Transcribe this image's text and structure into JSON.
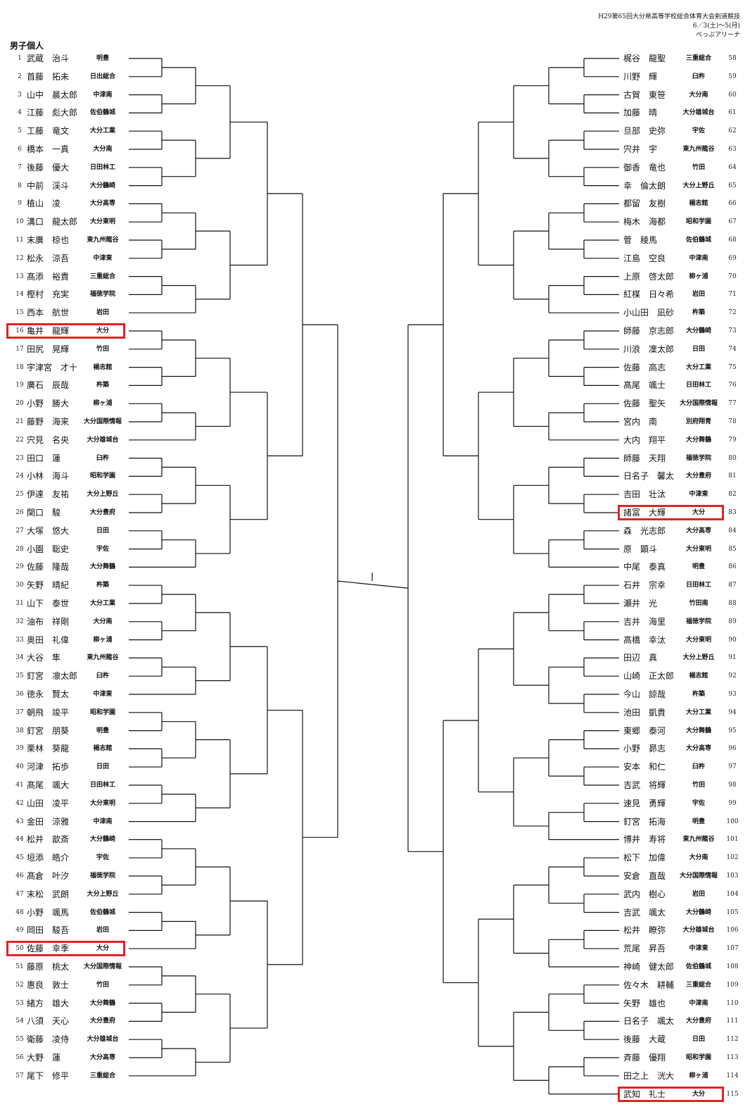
{
  "header": {
    "line1": "H29第65回大分県高等学校総合体育大会剣道競技",
    "line2": "6／3(土)～5(月)",
    "line3": "べっぷアリーナ"
  },
  "title": "男子個人",
  "left_entries": [
    {
      "no": "1",
      "name": "武蔵　治斗",
      "school": "明豊"
    },
    {
      "no": "2",
      "name": "首藤　拓未",
      "school": "日出総合"
    },
    {
      "no": "3",
      "name": "山中　晨太郎",
      "school": "中津南"
    },
    {
      "no": "4",
      "name": "江藤　彪大郎",
      "school": "佐伯鶴城"
    },
    {
      "no": "5",
      "name": "工藤　竜文",
      "school": "大分工業"
    },
    {
      "no": "6",
      "name": "橋本　一真",
      "school": "大分南"
    },
    {
      "no": "7",
      "name": "後藤　優大",
      "school": "日田林工"
    },
    {
      "no": "8",
      "name": "中前　渓斗",
      "school": "大分鶴崎"
    },
    {
      "no": "9",
      "name": "植山　凌",
      "school": "大分高専"
    },
    {
      "no": "10",
      "name": "溝口　龍太郎",
      "school": "大分東明"
    },
    {
      "no": "11",
      "name": "末廣　椋也",
      "school": "東九州龍谷"
    },
    {
      "no": "12",
      "name": "松永　涼吾",
      "school": "中津東"
    },
    {
      "no": "13",
      "name": "髙添　裕貴",
      "school": "三重総合"
    },
    {
      "no": "14",
      "name": "樫村　充実",
      "school": "福徳学院"
    },
    {
      "no": "15",
      "name": "西本　航世",
      "school": "岩田"
    },
    {
      "no": "16",
      "name": "亀井　龍輝",
      "school": "大分"
    },
    {
      "no": "17",
      "name": "田尻　晃輝",
      "school": "竹田"
    },
    {
      "no": "18",
      "name": "宇津宮　才十",
      "school": "楊志館"
    },
    {
      "no": "19",
      "name": "廣石　辰哉",
      "school": "杵築"
    },
    {
      "no": "20",
      "name": "小野　勝大",
      "school": "柳ヶ浦"
    },
    {
      "no": "21",
      "name": "藤野　海来",
      "school": "大分国際情報"
    },
    {
      "no": "22",
      "name": "宍見　名央",
      "school": "大分雄城台"
    },
    {
      "no": "23",
      "name": "田口　蓮",
      "school": "臼杵"
    },
    {
      "no": "24",
      "name": "小林　海斗",
      "school": "昭和学園"
    },
    {
      "no": "25",
      "name": "伊達　友祐",
      "school": "大分上野丘"
    },
    {
      "no": "26",
      "name": "関口　駿",
      "school": "大分豊府"
    },
    {
      "no": "27",
      "name": "大塚　悠大",
      "school": "日田"
    },
    {
      "no": "28",
      "name": "小園　聡史",
      "school": "宇佐"
    },
    {
      "no": "29",
      "name": "佐藤　隆哉",
      "school": "大分舞鶴"
    },
    {
      "no": "30",
      "name": "矢野　晴紀",
      "school": "杵築"
    },
    {
      "no": "31",
      "name": "山下　泰世",
      "school": "大分工業"
    },
    {
      "no": "32",
      "name": "油布　祥剛",
      "school": "大分南"
    },
    {
      "no": "33",
      "name": "奥田　礼偉",
      "school": "柳ヶ浦"
    },
    {
      "no": "34",
      "name": "大谷　隼",
      "school": "東九州龍谷"
    },
    {
      "no": "35",
      "name": "釘宮　凛太郎",
      "school": "臼杵"
    },
    {
      "no": "36",
      "name": "徳永　賢太",
      "school": "中津東"
    },
    {
      "no": "37",
      "name": "朝飛　竣平",
      "school": "昭和学園"
    },
    {
      "no": "38",
      "name": "釘宮　朋葵",
      "school": "明豊"
    },
    {
      "no": "39",
      "name": "栗林　葵龍",
      "school": "楊志館"
    },
    {
      "no": "40",
      "name": "河津　拓歩",
      "school": "日田"
    },
    {
      "no": "41",
      "name": "髙尾　颯大",
      "school": "日田林工"
    },
    {
      "no": "42",
      "name": "山田　凌平",
      "school": "大分東明"
    },
    {
      "no": "43",
      "name": "金田　涼雅",
      "school": "中津南"
    },
    {
      "no": "44",
      "name": "松井　歆斎",
      "school": "大分鶴崎"
    },
    {
      "no": "45",
      "name": "垣添　皓介",
      "school": "宇佐"
    },
    {
      "no": "46",
      "name": "髙倉　叶汐",
      "school": "福徳学院"
    },
    {
      "no": "47",
      "name": "末松　武朗",
      "school": "大分上野丘"
    },
    {
      "no": "48",
      "name": "小野　颯馬",
      "school": "佐伯鶴城"
    },
    {
      "no": "49",
      "name": "岡田　駿吾",
      "school": "岩田"
    },
    {
      "no": "50",
      "name": "佐藤　幸季",
      "school": "大分"
    },
    {
      "no": "51",
      "name": "藤原　桃太",
      "school": "大分国際情報"
    },
    {
      "no": "52",
      "name": "惠良　敦士",
      "school": "竹田"
    },
    {
      "no": "53",
      "name": "緒方　雄大",
      "school": "大分舞鶴"
    },
    {
      "no": "54",
      "name": "八須　天心",
      "school": "大分豊府"
    },
    {
      "no": "55",
      "name": "衛藤　凌侍",
      "school": "大分雄城台"
    },
    {
      "no": "56",
      "name": "大野　蓮",
      "school": "大分高専"
    },
    {
      "no": "57",
      "name": "尾下　修平",
      "school": "三重総合"
    }
  ],
  "right_entries": [
    {
      "no": "58",
      "name": "梶谷　龍聖",
      "school": "三重総合"
    },
    {
      "no": "59",
      "name": "川野　輝",
      "school": "臼杵"
    },
    {
      "no": "60",
      "name": "古賀　東笹",
      "school": "大分南"
    },
    {
      "no": "61",
      "name": "加藤　晴",
      "school": "大分雄城台"
    },
    {
      "no": "62",
      "name": "旦部　史弥",
      "school": "宇佐"
    },
    {
      "no": "63",
      "name": "宍井　宇",
      "school": "東九州龍谷"
    },
    {
      "no": "64",
      "name": "御香　竜也",
      "school": "竹田"
    },
    {
      "no": "65",
      "name": "幸　倫太朗",
      "school": "大分上野丘"
    },
    {
      "no": "66",
      "name": "都留　友樹",
      "school": "楊志館"
    },
    {
      "no": "67",
      "name": "梅木　海都",
      "school": "昭和学園"
    },
    {
      "no": "68",
      "name": "菅　稜馬",
      "school": "佐伯鶴城"
    },
    {
      "no": "69",
      "name": "江島　空良",
      "school": "中津南"
    },
    {
      "no": "70",
      "name": "上原　啓太郎",
      "school": "柳ヶ浦"
    },
    {
      "no": "71",
      "name": "紅楳　日々希",
      "school": "岩田"
    },
    {
      "no": "72",
      "name": "小山田　凪砂",
      "school": "杵築"
    },
    {
      "no": "73",
      "name": "師藤　京志郎",
      "school": "大分鶴崎"
    },
    {
      "no": "74",
      "name": "川浪　凜太郎",
      "school": "日田"
    },
    {
      "no": "75",
      "name": "佐藤　高志",
      "school": "大分工業"
    },
    {
      "no": "76",
      "name": "髙尾　颯士",
      "school": "日田林工"
    },
    {
      "no": "77",
      "name": "佐藤　聖矢",
      "school": "大分国際情報"
    },
    {
      "no": "78",
      "name": "宮内　南",
      "school": "別府翔青"
    },
    {
      "no": "79",
      "name": "大内　翔平",
      "school": "大分舞鶴"
    },
    {
      "no": "80",
      "name": "師藤　天翔",
      "school": "福徳学院"
    },
    {
      "no": "81",
      "name": "日名子　馨太",
      "school": "大分豊府"
    },
    {
      "no": "82",
      "name": "吉田　壮汰",
      "school": "中津東"
    },
    {
      "no": "83",
      "name": "諸冨　大輝",
      "school": "大分"
    },
    {
      "no": "84",
      "name": "森　光志郎",
      "school": "大分高専"
    },
    {
      "no": "85",
      "name": "原　顕斗",
      "school": "大分東明"
    },
    {
      "no": "86",
      "name": "中尾　泰真",
      "school": "明豊"
    },
    {
      "no": "87",
      "name": "石井　宗幸",
      "school": "日田林工"
    },
    {
      "no": "88",
      "name": "瀬井　光",
      "school": "竹田南"
    },
    {
      "no": "89",
      "name": "吉井　海里",
      "school": "福徳学院"
    },
    {
      "no": "90",
      "name": "髙橋　幸汰",
      "school": "大分東明"
    },
    {
      "no": "91",
      "name": "田辺　真",
      "school": "大分上野丘"
    },
    {
      "no": "92",
      "name": "山崎　正太郎",
      "school": "楊志館"
    },
    {
      "no": "93",
      "name": "今山　諒哉",
      "school": "杵築"
    },
    {
      "no": "94",
      "name": "池田　凱貴",
      "school": "大分工業"
    },
    {
      "no": "95",
      "name": "東郷　泰河",
      "school": "大分舞鶴"
    },
    {
      "no": "96",
      "name": "小野　昴志",
      "school": "大分高専"
    },
    {
      "no": "97",
      "name": "安本　和仁",
      "school": "臼杵"
    },
    {
      "no": "98",
      "name": "吉武　将輝",
      "school": "竹田"
    },
    {
      "no": "99",
      "name": "速見　勇輝",
      "school": "宇佐"
    },
    {
      "no": "100",
      "name": "釘宮　拓海",
      "school": "明豊"
    },
    {
      "no": "101",
      "name": "博井　寿将",
      "school": "東九州龍谷"
    },
    {
      "no": "102",
      "name": "松下　加偉",
      "school": "大分南"
    },
    {
      "no": "103",
      "name": "安倉　直哉",
      "school": "大分国際情報"
    },
    {
      "no": "104",
      "name": "武内　樹心",
      "school": "岩田"
    },
    {
      "no": "105",
      "name": "吉武　颯太",
      "school": "大分鶴崎"
    },
    {
      "no": "106",
      "name": "松井　瞭弥",
      "school": "大分雄城台"
    },
    {
      "no": "107",
      "name": "荒尾　昇吾",
      "school": "中津東"
    },
    {
      "no": "108",
      "name": "神崎　健太郎",
      "school": "佐伯鶴城"
    },
    {
      "no": "109",
      "name": "佐々木　耕輔",
      "school": "三重総合"
    },
    {
      "no": "110",
      "name": "矢野　雄也",
      "school": "中津南"
    },
    {
      "no": "111",
      "name": "日名子　颯太",
      "school": "大分豊府"
    },
    {
      "no": "112",
      "name": "後藤　大蔵",
      "school": "日田"
    },
    {
      "no": "113",
      "name": "斉藤　優翔",
      "school": "昭和学園"
    },
    {
      "no": "114",
      "name": "田之上　洸大",
      "school": "柳ヶ浦"
    },
    {
      "no": "115",
      "name": "武知　礼士",
      "school": "大分"
    }
  ],
  "highlights": [
    "16",
    "50",
    "83",
    "115"
  ],
  "colors": {
    "highlight": "#e32222",
    "line": "#111111"
  }
}
